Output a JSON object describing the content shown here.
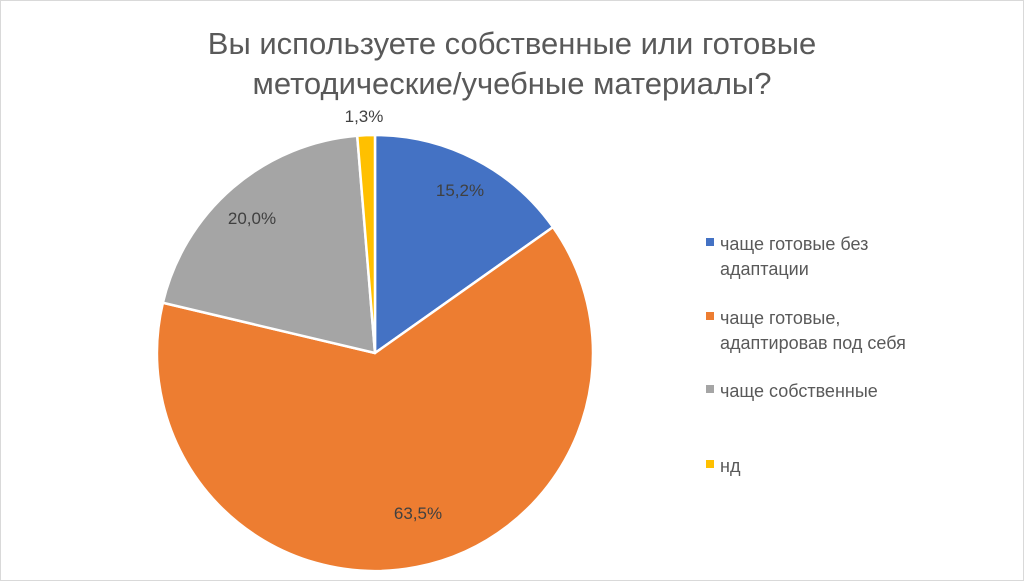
{
  "chart_data": {
    "type": "pie",
    "title_line1": "Вы используете собственные или готовые",
    "title_line2": "методические/учебные материалы?",
    "categories": [
      "чаще готовые без адаптации",
      "чаще готовые, адаптировав под себя",
      "чаще собственные",
      "нд"
    ],
    "values": [
      15.2,
      63.5,
      20.0,
      1.3
    ],
    "data_labels": [
      "15,2%",
      "63,5%",
      "20,0%",
      "1,3%"
    ],
    "colors": [
      "#4472c4",
      "#ed7d31",
      "#a5a5a5",
      "#ffc000"
    ],
    "legend_position": "right"
  },
  "legend": {
    "items": [
      {
        "line1": "чаще готовые без",
        "line2": "адаптации"
      },
      {
        "line1": "чаще готовые,",
        "line2": "адаптировав под себя"
      },
      {
        "line1": "чаще собственные",
        "line2": ""
      },
      {
        "line1": "нд",
        "line2": ""
      }
    ]
  }
}
